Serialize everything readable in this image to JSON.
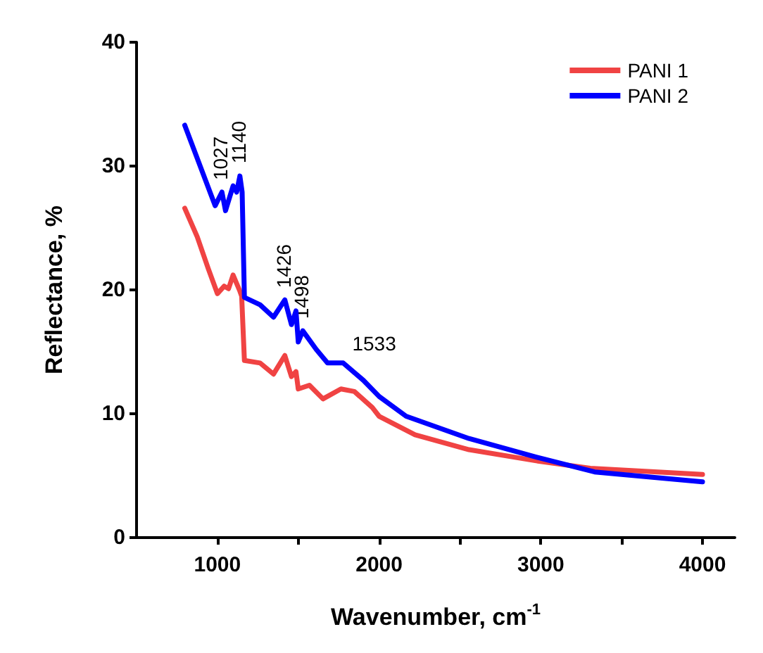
{
  "chart_data": {
    "type": "line",
    "xlabel": "Wavenumber, cm$^{-1}$",
    "ylabel": "Reflectance, %",
    "xlim": [
      500,
      4200
    ],
    "xticks": [
      1000,
      {
        "value": 1500,
        "label": null
      },
      2000,
      {
        "value": 2500,
        "label": null
      },
      3000,
      {
        "value": 3500,
        "label": null
      },
      4000
    ],
    "ylim": [
      0,
      40
    ],
    "yticks": [
      0,
      10,
      20,
      30,
      40
    ],
    "grid": false,
    "legend": "top right",
    "marker": "none",
    "line_style": "solid",
    "series": [
      {
        "name": "PANI 1",
        "color": "#f04343",
        "x": [
          798,
          875,
          944,
          1000,
          1042,
          1069,
          1097,
          1139,
          1150,
          1167,
          1264,
          1347,
          1417,
          1458,
          1486,
          1500,
          1569,
          1653,
          1764,
          1847,
          1958,
          2000,
          2222,
          2556,
          2972,
          3306,
          4000
        ],
        "values": [
          26.6,
          24.3,
          21.7,
          19.7,
          20.3,
          20.1,
          21.2,
          19.9,
          19.5,
          14.3,
          14.1,
          13.2,
          14.7,
          13.0,
          13.4,
          12.0,
          12.3,
          11.2,
          12.0,
          11.8,
          10.5,
          9.8,
          8.3,
          7.1,
          6.2,
          5.6,
          5.1
        ]
      },
      {
        "name": "PANI 2",
        "color": "#0000ff",
        "x": [
          798,
          986,
          1028,
          1050,
          1097,
          1119,
          1139,
          1153,
          1167,
          1264,
          1347,
          1417,
          1458,
          1486,
          1500,
          1528,
          1611,
          1681,
          1778,
          1903,
          2000,
          2167,
          2556,
          2972,
          3333,
          3667,
          4000
        ],
        "values": [
          33.3,
          26.8,
          27.9,
          26.4,
          28.4,
          27.9,
          29.2,
          27.9,
          19.4,
          18.8,
          17.8,
          19.2,
          17.2,
          18.3,
          15.8,
          16.7,
          15.2,
          14.1,
          14.1,
          12.7,
          11.4,
          9.8,
          8.0,
          6.5,
          5.3,
          4.9,
          4.5
        ]
      }
    ],
    "annotations": [
      {
        "text": "1027",
        "x": 1028,
        "y": 27.9
      },
      {
        "text": "1140",
        "x": 1139,
        "y": 29.2
      },
      {
        "text": "1426",
        "x": 1417,
        "y": 19.2
      },
      {
        "text": "1498",
        "x": 1528,
        "y": 16.7
      },
      {
        "text": "1533",
        "x": 1778,
        "y": 14.1
      }
    ]
  }
}
